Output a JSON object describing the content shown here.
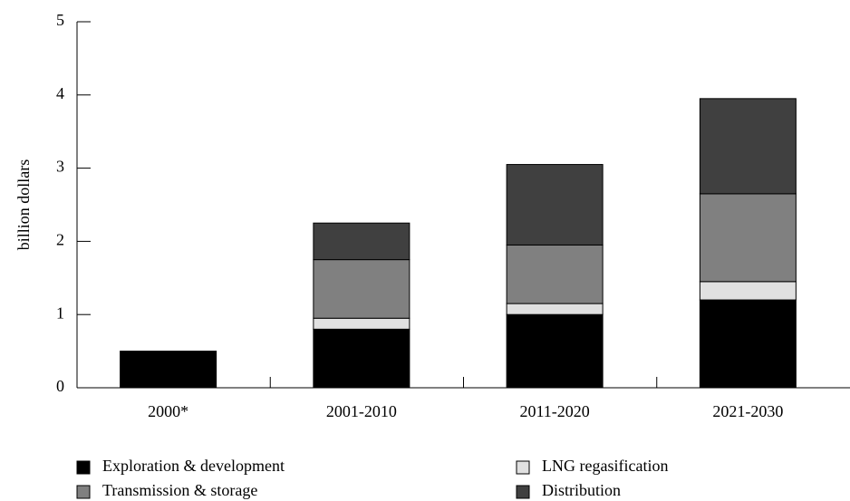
{
  "chart_data": {
    "type": "stacked_bar",
    "y_label": "billion dollars",
    "categories": [
      "2000*",
      "2001-2010",
      "2011-2020",
      "2021-2030"
    ],
    "series": [
      {
        "name": "Exploration & development",
        "color": "#000000",
        "values": [
          0.5,
          0.8,
          1.0,
          1.2
        ]
      },
      {
        "name": "LNG regasification",
        "color": "#e0e0e0",
        "values": [
          0,
          0.15,
          0.15,
          0.25
        ]
      },
      {
        "name": "Transmission & storage",
        "color": "#808080",
        "values": [
          0,
          0.8,
          0.8,
          1.2
        ]
      },
      {
        "name": "Distribution",
        "color": "#404040",
        "values": [
          0,
          0.5,
          1.1,
          1.3
        ]
      }
    ],
    "ylim": [
      0,
      5
    ],
    "yticks": [
      0,
      1,
      2,
      3,
      4,
      5
    ],
    "grid": false
  }
}
